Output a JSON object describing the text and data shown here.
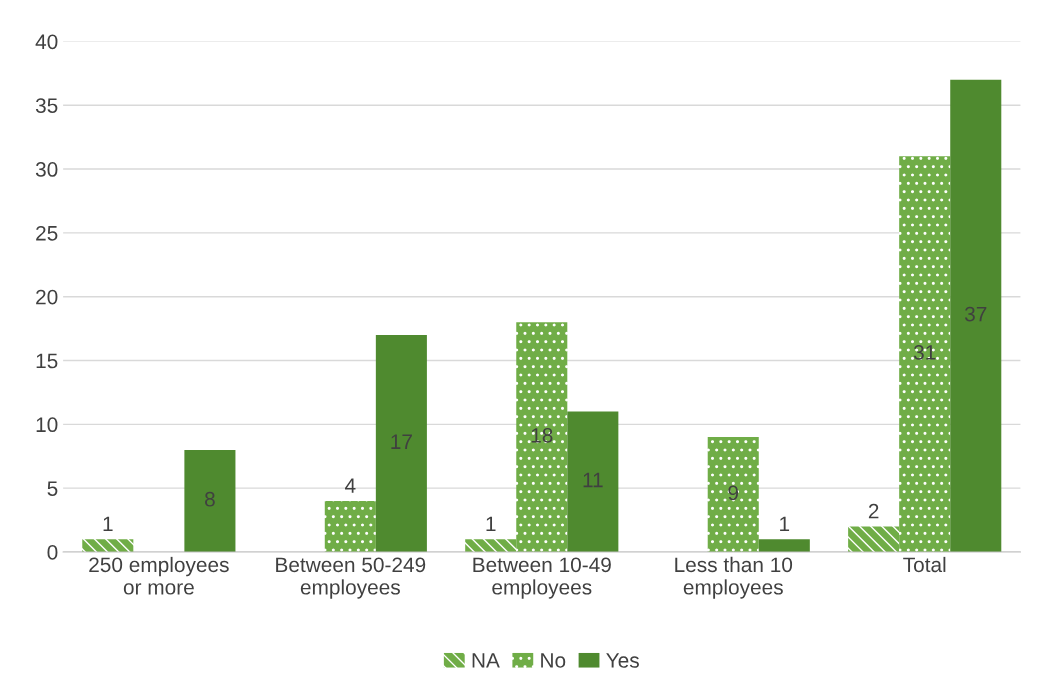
{
  "chart_data": {
    "type": "bar",
    "categories": [
      "250 employees\nor more",
      "Between 50-249\nemployees",
      "Between 10-49\nemployees",
      "Less than 10\nemployees",
      "Total"
    ],
    "series": [
      {
        "name": "NA",
        "color": "#70ad47",
        "values": [
          1,
          null,
          1,
          null,
          2
        ]
      },
      {
        "name": "No",
        "color": "#70ad47",
        "values": [
          null,
          4,
          18,
          9,
          31
        ]
      },
      {
        "name": "Yes",
        "color": "#4f8a2f",
        "values": [
          8,
          17,
          11,
          1,
          37
        ]
      }
    ],
    "ylim": [
      0,
      40
    ],
    "yticks": [
      0,
      5,
      10,
      15,
      20,
      25,
      30,
      35,
      40
    ],
    "grid": "y",
    "legend": "bottom",
    "data_labels": true
  }
}
